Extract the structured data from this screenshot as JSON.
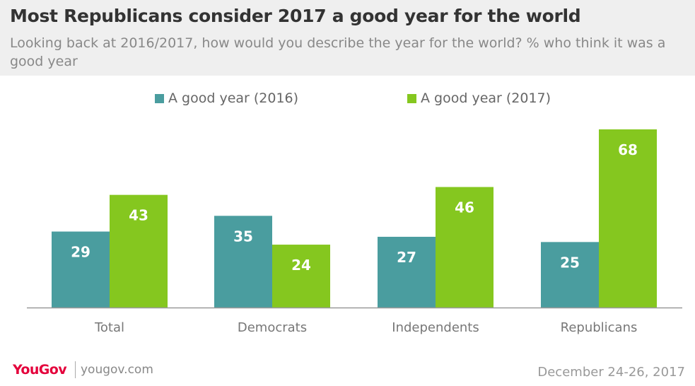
{
  "header": {
    "title": "Most Republicans consider 2017 a good year for the world",
    "subtitle": "Looking back at 2016/2017, how would you describe the year for the world? % who think it was a good year"
  },
  "chart_data": {
    "type": "bar",
    "categories": [
      "Total",
      "Democrats",
      "Independents",
      "Republicans"
    ],
    "series": [
      {
        "name": "A good year (2016)",
        "values": [
          29,
          35,
          27,
          25
        ],
        "color": "#4a9d9f"
      },
      {
        "name": "A good year (2017)",
        "values": [
          43,
          24,
          46,
          68
        ],
        "color": "#85c71f"
      }
    ],
    "ylim": [
      0,
      68
    ],
    "grid": false,
    "legend": "top-center",
    "data_labels": true
  },
  "footer": {
    "brand": "YouGov",
    "site": "yougov.com",
    "date": "December 24-26, 2017",
    "brand_color": "#e4003b"
  }
}
